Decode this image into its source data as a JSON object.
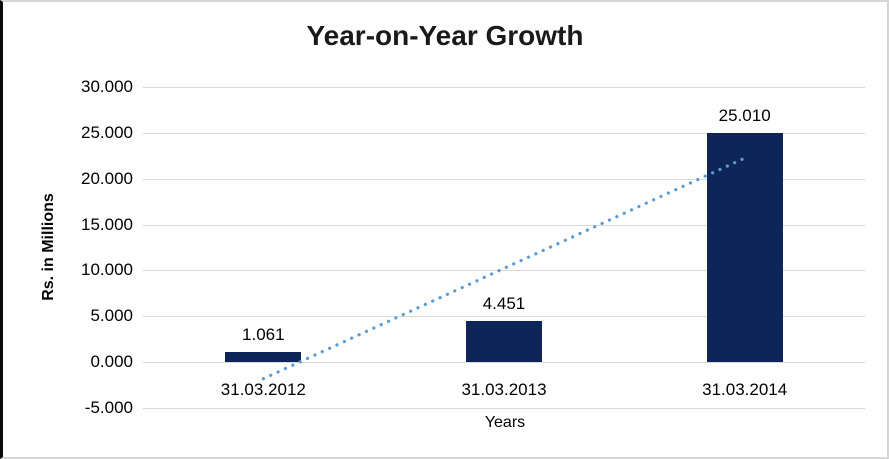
{
  "frame": {
    "background": "#ffffff",
    "border_color": "#d6d6d6",
    "left_border_color": "#0a0a0a"
  },
  "chart_data": {
    "type": "bar",
    "title": "Year-on-Year Growth",
    "categories": [
      "31.03.2012",
      "31.03.2013",
      "31.03.2014"
    ],
    "values": [
      1.061,
      4.451,
      25.01
    ],
    "data_labels": [
      "1.061",
      "4.451",
      "25.010"
    ],
    "xlabel": "Years",
    "ylabel": "Rs. in Millions",
    "ylim": [
      -5,
      30
    ],
    "ytick_step": 5,
    "ytick_labels": [
      "30.000",
      "25.000",
      "20.000",
      "15.000",
      "10.000",
      "5.000",
      "0.000",
      "-5.000"
    ],
    "grid": true,
    "legend": false,
    "bar_color": "#0F2557",
    "gridline_color": "#D9D9D9",
    "text_color": "#000000",
    "trendline": {
      "type": "linear",
      "style": "dotted",
      "color": "#5B9BD5",
      "start_value": -1.8,
      "end_value": 22.15
    }
  }
}
